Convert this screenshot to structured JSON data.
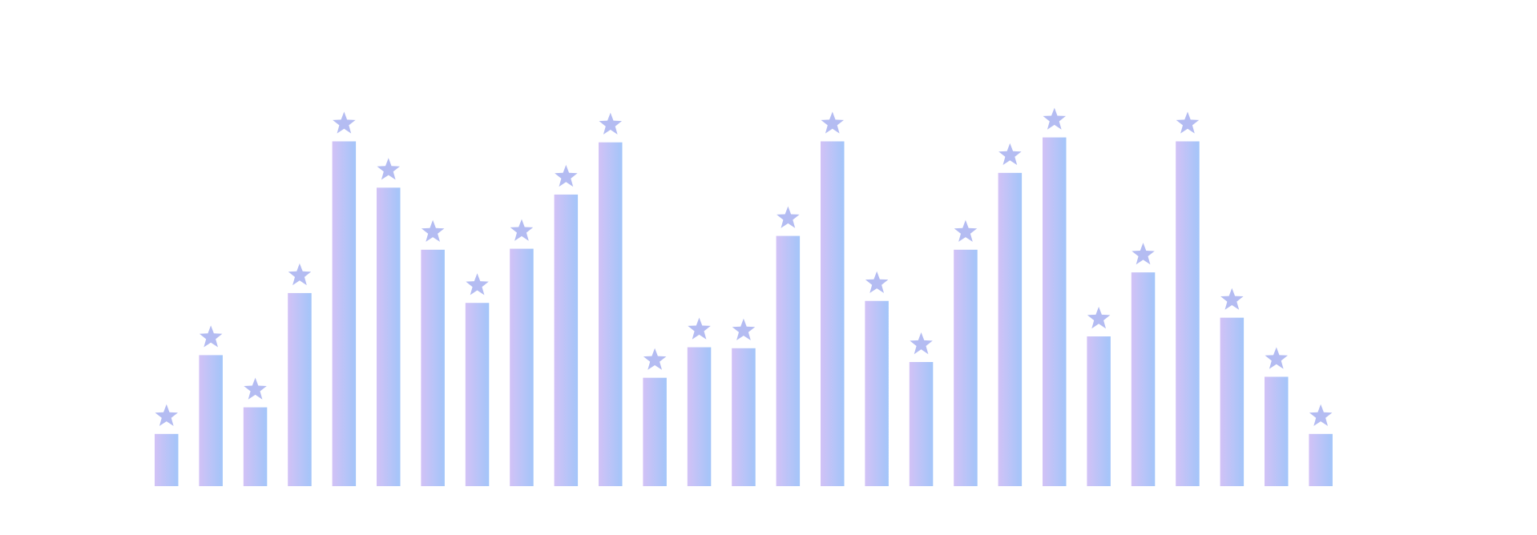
{
  "chart_data": {
    "type": "bar",
    "categories": [
      null,
      null,
      null,
      null,
      null,
      null,
      null,
      null,
      null,
      null,
      null,
      null,
      null,
      null,
      null,
      null,
      null,
      null,
      null,
      null,
      null,
      null,
      null,
      null,
      null,
      null,
      null
    ],
    "values": [
      53,
      133,
      80,
      196,
      350,
      303,
      240,
      186,
      241,
      296,
      349,
      110,
      141,
      140,
      254,
      350,
      188,
      126,
      240,
      318,
      354,
      152,
      217,
      350,
      171,
      111,
      53
    ],
    "color": [
      "#d2c2f6",
      "#a3c5f9"
    ],
    "marker_color": "#b4bcf2",
    "ylim": [
      0,
      400
    ]
  }
}
